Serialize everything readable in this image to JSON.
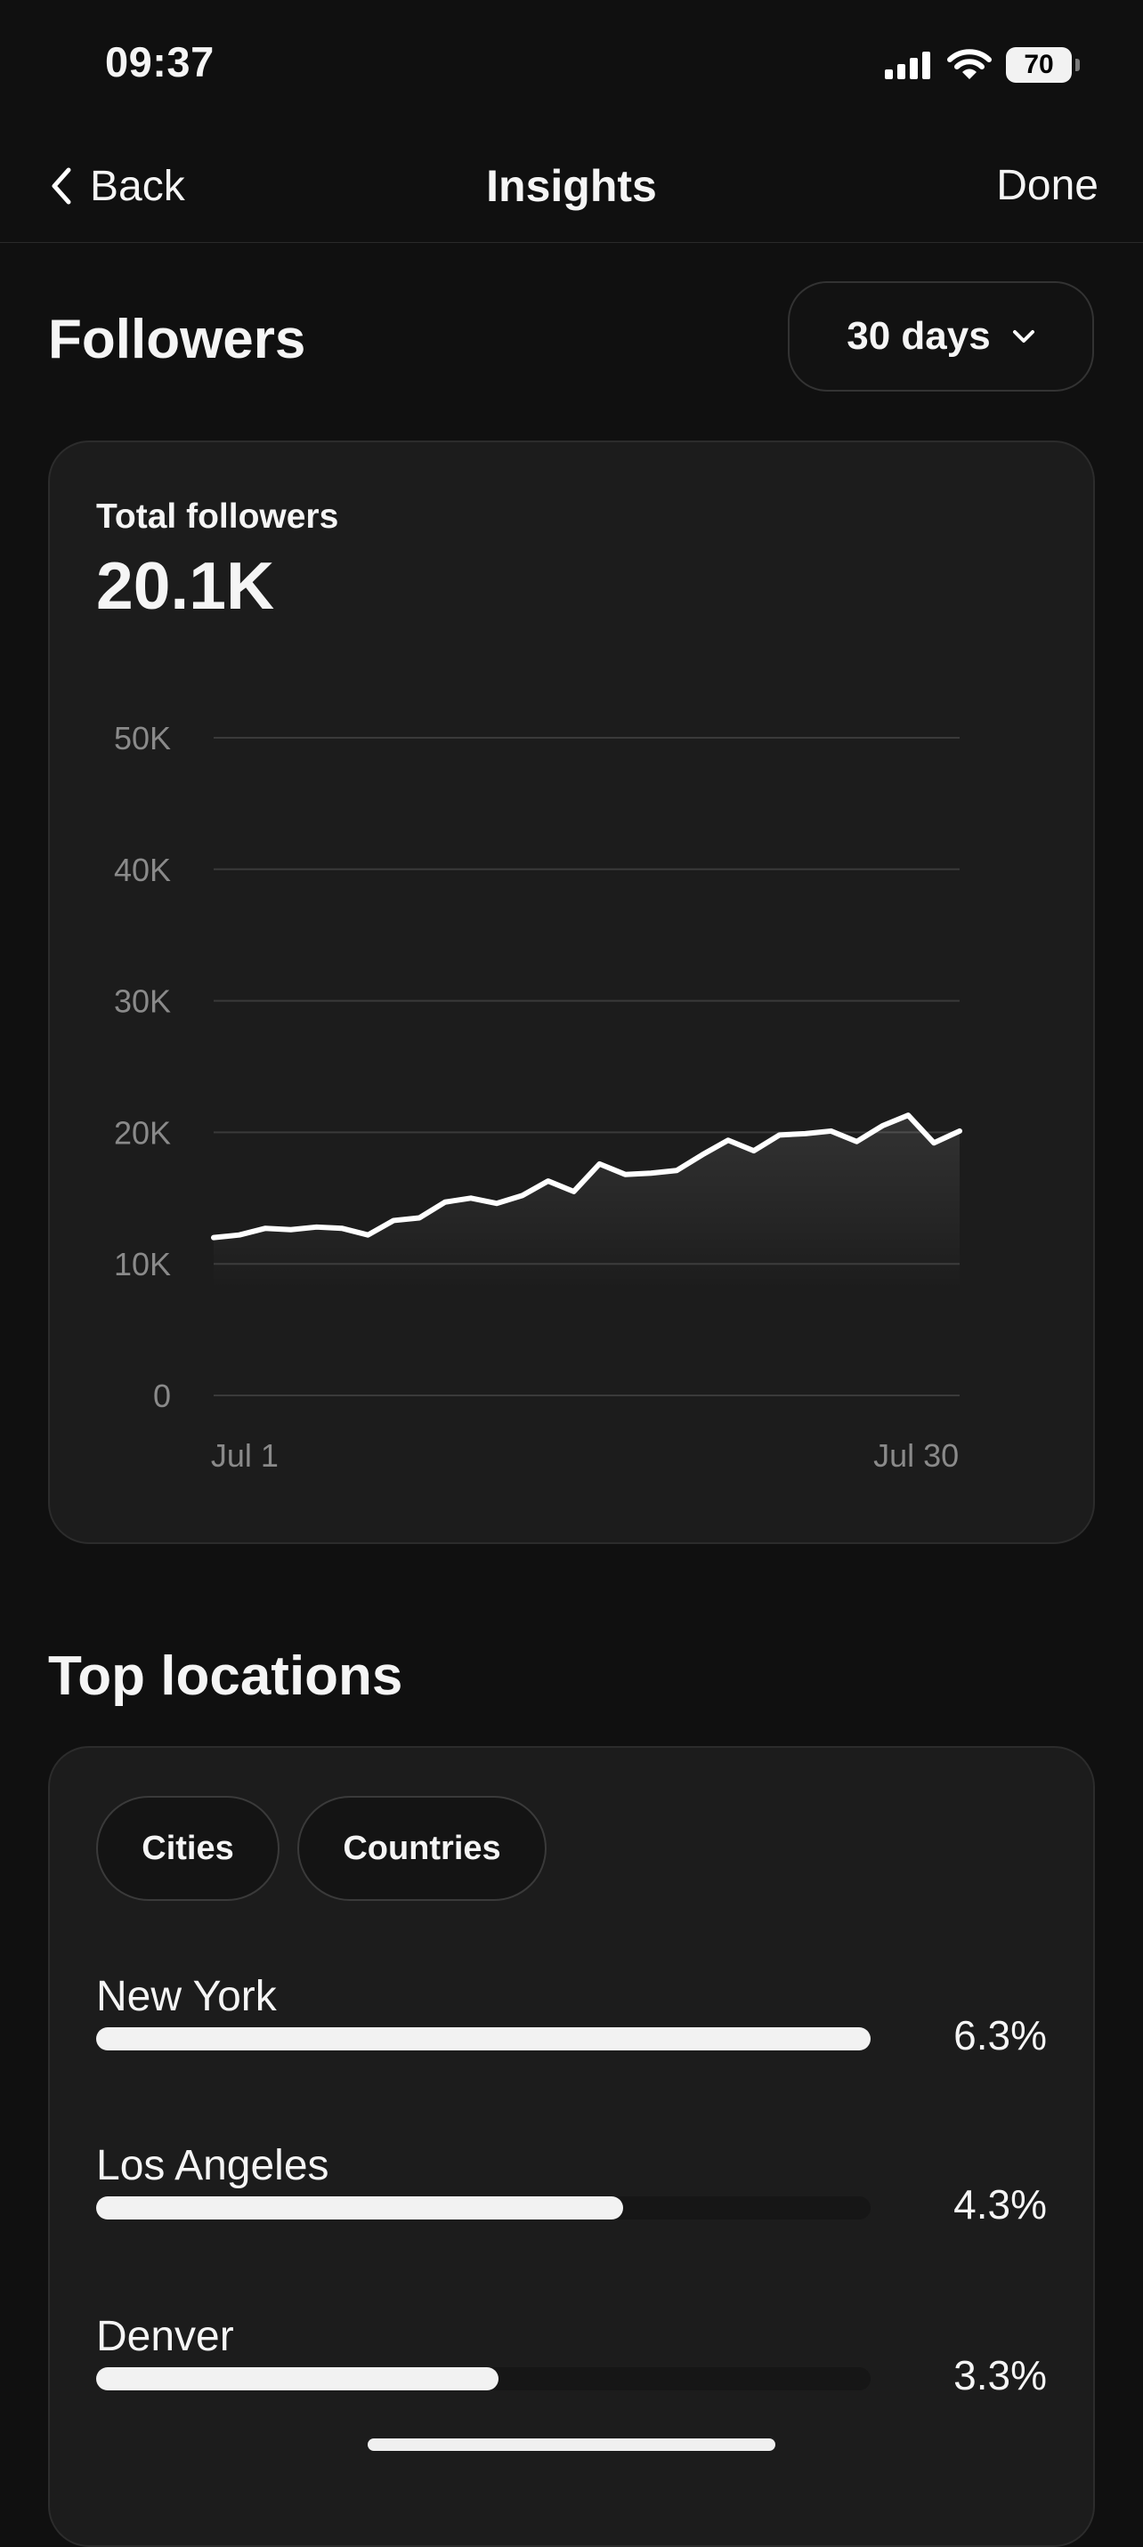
{
  "status": {
    "time": "09:37",
    "battery": "70",
    "icons": [
      "cellular-signal-icon",
      "wifi-icon",
      "battery-icon"
    ]
  },
  "nav": {
    "back_label": "Back",
    "title": "Insights",
    "done_label": "Done",
    "back_icon": "chevron-left-icon"
  },
  "followers": {
    "section_title": "Followers",
    "period": "30 days",
    "period_icon": "chevron-down-icon",
    "card_label": "Total followers",
    "total": "20.1K"
  },
  "chart_data": {
    "type": "area",
    "title": "Total followers",
    "xlabel": "",
    "ylabel": "",
    "ylim": [
      0,
      50000
    ],
    "yticks": [
      "0",
      "10K",
      "20K",
      "30K",
      "40K",
      "50K"
    ],
    "xticks": [
      "Jul 1",
      "Jul 30"
    ],
    "grid": true,
    "colors": {
      "line": "#ffffff",
      "grid": "#3a3a3a",
      "tick": "#8a8a8a"
    },
    "series": [
      {
        "values": [
          12000,
          12200,
          12700,
          12600,
          12800,
          12700,
          12200,
          13300,
          13500,
          14700,
          15000,
          14600,
          15200,
          16300,
          15500,
          17600,
          16800,
          16900,
          17100,
          18300,
          19400,
          18600,
          19800,
          19900,
          20100,
          19300,
          20500,
          21300,
          19200,
          20100
        ]
      }
    ]
  },
  "locations": {
    "section_title": "Top locations",
    "tabs": [
      "Cities",
      "Countries"
    ],
    "items": [
      {
        "name": "New York",
        "pct_label": "6.3%",
        "fraction": 1.0
      },
      {
        "name": "Los Angeles",
        "pct_label": "4.3%",
        "fraction": 0.68
      },
      {
        "name": "Denver",
        "pct_label": "3.3%",
        "fraction": 0.52
      }
    ]
  }
}
